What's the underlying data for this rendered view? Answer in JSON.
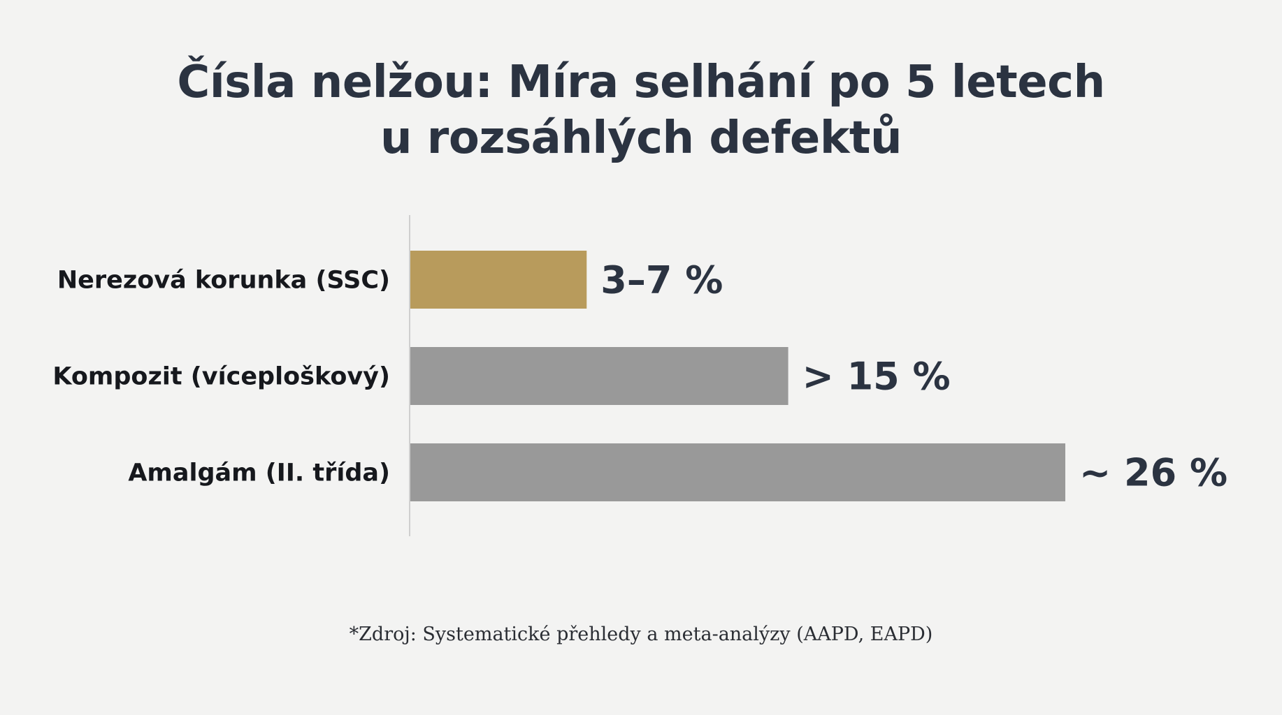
{
  "title": {
    "line1": "Čísla nelžou: Míra selhání po 5 letech",
    "line2": "u rozsáhlých defektů"
  },
  "chart_data": {
    "type": "bar",
    "orientation": "horizontal",
    "categories": [
      "Nerezová korunka (SSC)",
      "Kompozit (víceploškový)",
      "Amalgám (II. třída)"
    ],
    "values": [
      7,
      15,
      26
    ],
    "value_labels": [
      "3–7 %",
      "> 15 %",
      "~ 26 %"
    ],
    "colors": [
      "#b89b5c",
      "#999999",
      "#999999"
    ],
    "xlim": [
      0,
      26
    ],
    "grid": false,
    "legend": "none"
  },
  "source": "*Zdroj: Systematické přehledy a meta-analýzy (AAPD, EAPD)",
  "colors": {
    "background": "#f3f3f2",
    "title": "#2b3341",
    "axis": "#cfcfcf"
  }
}
